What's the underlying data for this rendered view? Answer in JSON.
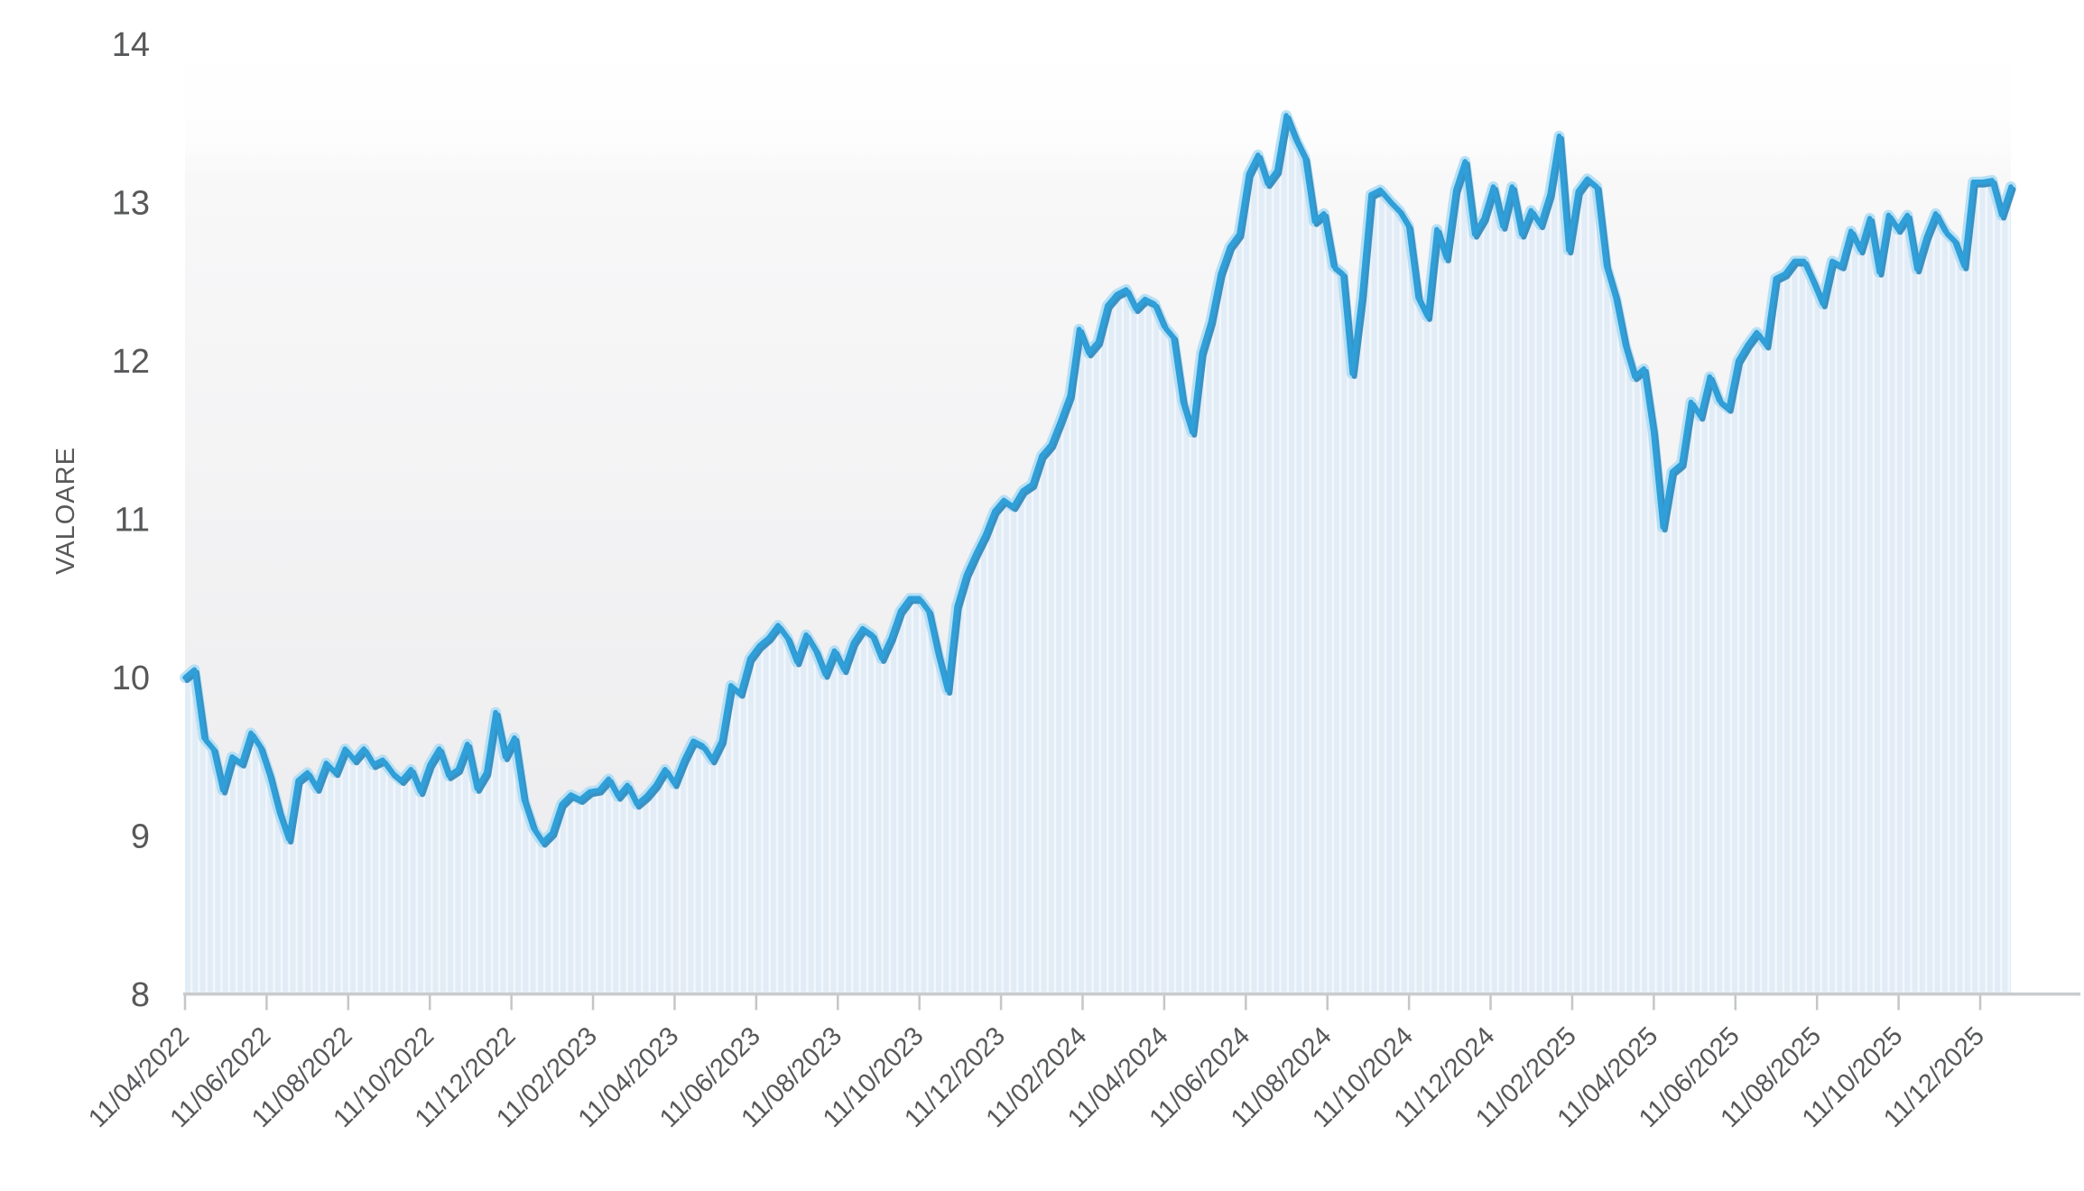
{
  "chart_data": {
    "type": "area",
    "title": "",
    "xlabel": "",
    "ylabel": "VALOARE",
    "x_start": "11/04/2022",
    "x_interval": "weekly",
    "ylim": [
      8,
      14
    ],
    "y_ticks": [
      14,
      13,
      12,
      11,
      10,
      9,
      8
    ],
    "y_tick_labels": [
      "14",
      "13",
      "12",
      "11",
      "10",
      "9",
      "8"
    ],
    "x_tick_labels": [
      "11/04/2022",
      "11/06/2022",
      "11/08/2022",
      "11/10/2022",
      "11/12/2022",
      "11/02/2023",
      "11/04/2023",
      "11/06/2023",
      "11/08/2023",
      "11/10/2023",
      "11/12/2023",
      "11/02/2024",
      "11/04/2024",
      "11/06/2024",
      "11/08/2024",
      "11/10/2024",
      "11/12/2024",
      "11/02/2025",
      "11/04/2025",
      "11/06/2025",
      "11/08/2025",
      "11/10/2025",
      "11/12/2025"
    ],
    "grid": "vertical-stripes-only",
    "legend_position": "none",
    "series": [
      {
        "name": "VALOARE",
        "values": [
          10.0,
          10.05,
          9.62,
          9.55,
          9.29,
          9.5,
          9.46,
          9.65,
          9.56,
          9.38,
          9.15,
          8.98,
          9.35,
          9.4,
          9.3,
          9.46,
          9.4,
          9.55,
          9.48,
          9.55,
          9.45,
          9.48,
          9.4,
          9.35,
          9.42,
          9.28,
          9.45,
          9.55,
          9.38,
          9.42,
          9.58,
          9.3,
          9.4,
          9.78,
          9.5,
          9.62,
          9.23,
          9.05,
          8.96,
          9.02,
          9.2,
          9.26,
          9.23,
          9.28,
          9.29,
          9.36,
          9.25,
          9.32,
          9.2,
          9.25,
          9.32,
          9.42,
          9.33,
          9.48,
          9.6,
          9.57,
          9.48,
          9.6,
          9.95,
          9.9,
          10.12,
          10.2,
          10.25,
          10.33,
          10.25,
          10.1,
          10.27,
          10.17,
          10.02,
          10.17,
          10.05,
          10.22,
          10.31,
          10.27,
          10.12,
          10.25,
          10.42,
          10.5,
          10.5,
          10.42,
          10.15,
          9.92,
          10.45,
          10.65,
          10.78,
          10.9,
          11.05,
          11.12,
          11.08,
          11.18,
          11.22,
          11.4,
          11.47,
          11.62,
          11.78,
          12.2,
          12.05,
          12.12,
          12.35,
          12.42,
          12.45,
          12.33,
          12.39,
          12.36,
          12.22,
          12.15,
          11.74,
          11.55,
          12.05,
          12.25,
          12.55,
          12.72,
          12.8,
          13.18,
          13.3,
          13.12,
          13.2,
          13.55,
          13.4,
          13.28,
          12.88,
          12.93,
          12.6,
          12.55,
          11.92,
          12.4,
          13.05,
          13.08,
          13.01,
          12.95,
          12.85,
          12.4,
          12.28,
          12.83,
          12.65,
          13.08,
          13.26,
          12.8,
          12.9,
          13.1,
          12.85,
          13.1,
          12.8,
          12.95,
          12.86,
          13.05,
          13.42,
          12.7,
          13.07,
          13.15,
          13.1,
          12.6,
          12.4,
          12.1,
          11.9,
          11.95,
          11.55,
          10.95,
          11.3,
          11.35,
          11.74,
          11.65,
          11.9,
          11.75,
          11.7,
          12.0,
          12.1,
          12.18,
          12.1,
          12.52,
          12.55,
          12.63,
          12.63,
          12.5,
          12.36,
          12.63,
          12.6,
          12.82,
          12.7,
          12.9,
          12.56,
          12.92,
          12.83,
          12.92,
          12.58,
          12.78,
          12.93,
          12.82,
          12.76,
          12.6,
          13.13,
          13.13,
          13.14,
          12.92,
          13.1
        ]
      }
    ],
    "colors": {
      "line_core": "#2f9fd9",
      "line_shadow": "#1b7db5",
      "line_halo": "#abdcf4",
      "area_fill": "#e1ecf6",
      "stripe": "#ffffff",
      "axis_line": "#c9cbcd",
      "tick": "#c4c6c8",
      "text": "#57585a",
      "plot_bg_top": "#ffffff",
      "plot_bg_bottom": "#ebebed"
    }
  }
}
